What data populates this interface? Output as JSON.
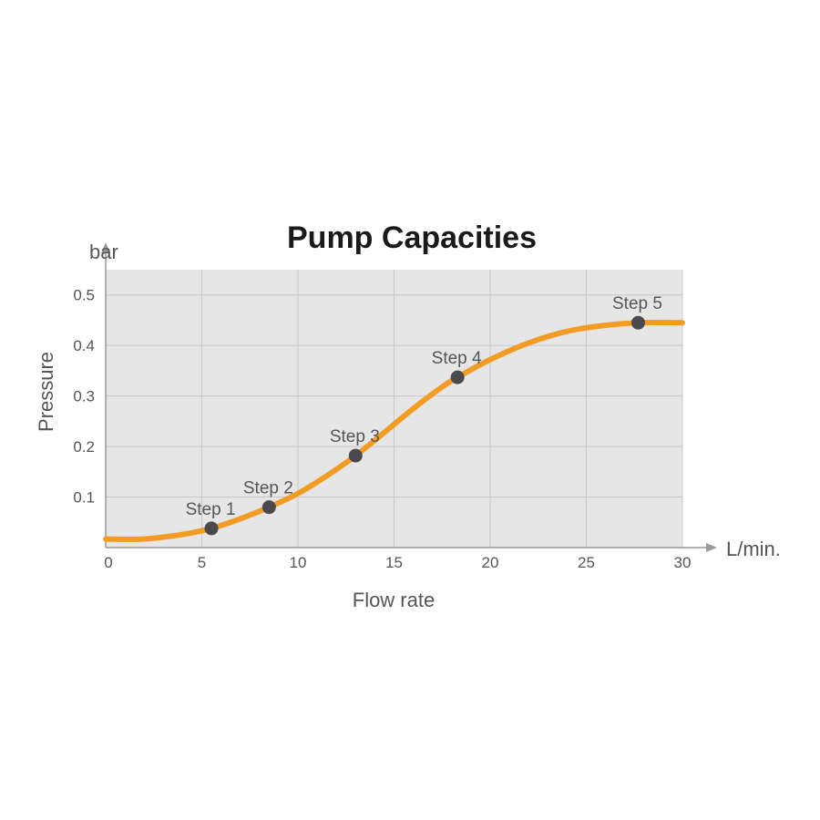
{
  "chart_data": {
    "type": "line",
    "title": "Pump Capacities",
    "xlabel": "Flow rate",
    "ylabel": "Pressure",
    "x_unit": "L/min.",
    "y_unit": "bar",
    "xlim": [
      0,
      30
    ],
    "ylim": [
      0,
      0.55
    ],
    "x_ticks": [
      0,
      5,
      10,
      15,
      20,
      25,
      30
    ],
    "y_ticks": [
      0.1,
      0.2,
      0.3,
      0.4,
      0.5
    ],
    "y_tick_labels": [
      "0.1",
      "0.2",
      "0.3",
      "0.4",
      "0.5"
    ],
    "grid": true,
    "curve": {
      "x": [
        0,
        2,
        4,
        5.5,
        7,
        8.5,
        10,
        11.5,
        13,
        14.5,
        16,
        17.5,
        18.3,
        20,
        22,
        24,
        26,
        27.7,
        30
      ],
      "y": [
        0.017,
        0.017,
        0.026,
        0.038,
        0.057,
        0.08,
        0.107,
        0.142,
        0.182,
        0.228,
        0.275,
        0.318,
        0.337,
        0.372,
        0.405,
        0.428,
        0.44,
        0.445,
        0.445
      ]
    },
    "points": [
      {
        "label": "Step 1",
        "x": 5.5,
        "y": 0.038
      },
      {
        "label": "Step 2",
        "x": 8.5,
        "y": 0.08
      },
      {
        "label": "Step 3",
        "x": 13,
        "y": 0.182
      },
      {
        "label": "Step 4",
        "x": 18.3,
        "y": 0.337
      },
      {
        "label": "Step 5",
        "x": 27.7,
        "y": 0.445
      }
    ],
    "colors": {
      "plot_background": "#e6e6e7",
      "grid": "#c8c8ca",
      "curve": "#f39c24",
      "points": "#4a4a4e",
      "axis": "#9a9a9c"
    }
  }
}
